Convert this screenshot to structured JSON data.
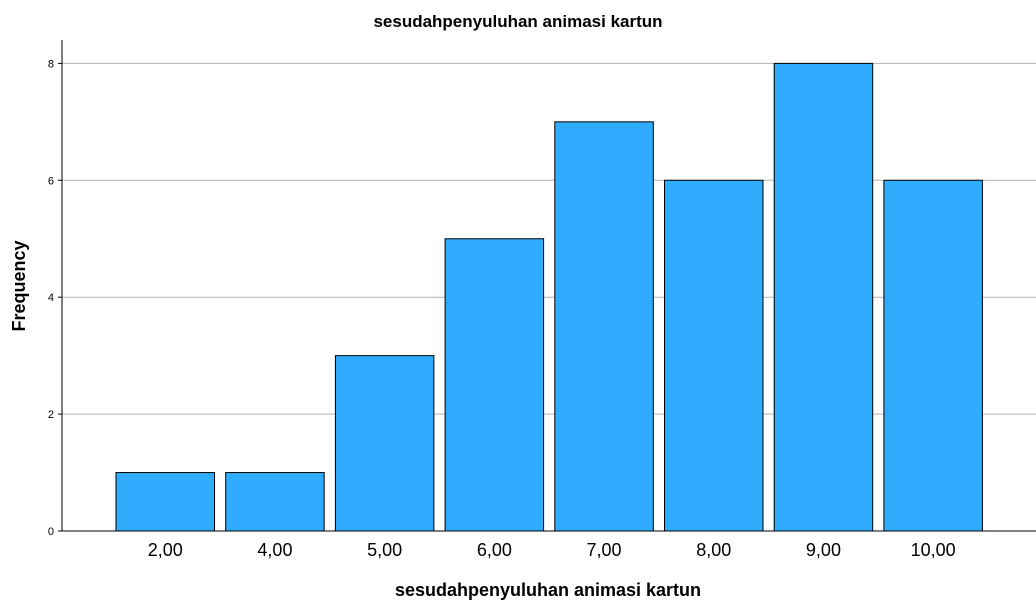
{
  "chart_data": {
    "type": "bar",
    "title": "sesudahpenyuluhan animasi kartun",
    "xlabel": "sesudahpenyuluhan animasi kartun",
    "ylabel": "Frequency",
    "categories": [
      "2,00",
      "4,00",
      "5,00",
      "6,00",
      "7,00",
      "8,00",
      "9,00",
      "10,00"
    ],
    "values": [
      1,
      1,
      3,
      5,
      7,
      6,
      8,
      6
    ],
    "ylim": [
      0,
      8.4
    ],
    "yticks": [
      "0",
      "2",
      "4",
      "6",
      "8"
    ],
    "ytick_values": [
      0,
      2,
      4,
      6,
      8
    ],
    "grid": true,
    "bar_color": "#30acff"
  }
}
